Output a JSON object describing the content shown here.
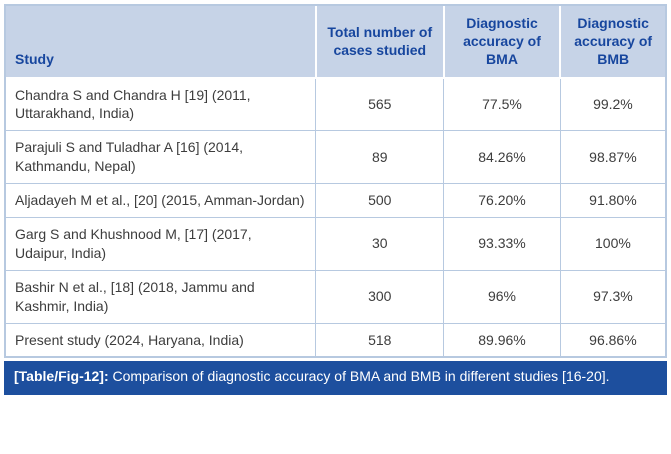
{
  "colors": {
    "header_bg": "#c6d3e7",
    "header_text": "#17469e",
    "caption_bg": "#1d4f9e",
    "caption_text": "#ffffff",
    "cell_border": "#b7c9e0",
    "body_text": "#3d3d3d"
  },
  "table": {
    "headers": [
      "Study",
      "Total number of cases studied",
      "Diagnostic accuracy of BMA",
      "Diagnostic accuracy of BMB"
    ],
    "rows": [
      {
        "study": "Chandra S and Chandra H [19] (2011, Uttarakhand, India)",
        "cases": "565",
        "bma": "77.5%",
        "bmb": "99.2%"
      },
      {
        "study": "Parajuli S and Tuladhar A [16] (2014, Kathmandu, Nepal)",
        "cases": "89",
        "bma": "84.26%",
        "bmb": "98.87%"
      },
      {
        "study": "Aljadayeh M et al., [20] (2015, Amman-Jordan)",
        "cases": "500",
        "bma": "76.20%",
        "bmb": "91.80%"
      },
      {
        "study": "Garg S and Khushnood M, [17] (2017, Udaipur, India)",
        "cases": "30",
        "bma": "93.33%",
        "bmb": "100%"
      },
      {
        "study": "Bashir N et al., [18] (2018, Jammu and Kashmir, India)",
        "cases": "300",
        "bma": "96%",
        "bmb": "97.3%"
      },
      {
        "study": "Present study (2024, Haryana, India)",
        "cases": "518",
        "bma": "89.96%",
        "bmb": "96.86%"
      }
    ]
  },
  "caption": {
    "label": "[Table/Fig-12]:",
    "text": " Comparison of diagnostic accuracy of BMA and BMB in different studies [16-20]."
  }
}
